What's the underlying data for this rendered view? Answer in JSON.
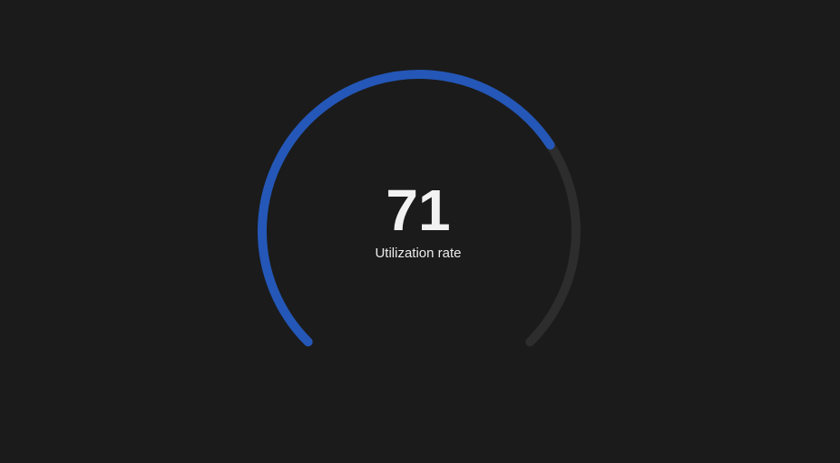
{
  "chart_data": {
    "type": "gauge",
    "value": 71,
    "min": 0,
    "max": 100,
    "label": "Utilization rate",
    "colors": {
      "background": "#1b1b1b",
      "progress": "#2457b7",
      "track": "#2d2d2d",
      "value_text": "#f2f2f2",
      "label_text": "#ececec"
    }
  }
}
